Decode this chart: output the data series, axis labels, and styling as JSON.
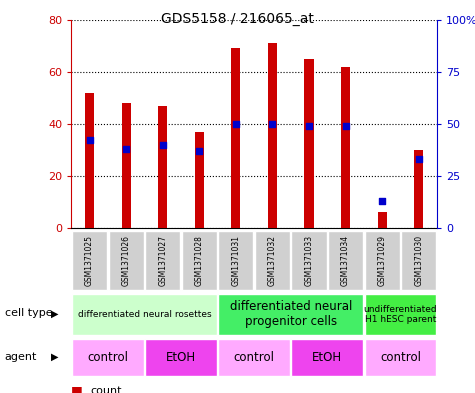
{
  "title": "GDS5158 / 216065_at",
  "samples": [
    "GSM1371025",
    "GSM1371026",
    "GSM1371027",
    "GSM1371028",
    "GSM1371031",
    "GSM1371032",
    "GSM1371033",
    "GSM1371034",
    "GSM1371029",
    "GSM1371030"
  ],
  "counts": [
    52,
    48,
    47,
    37,
    69,
    71,
    65,
    62,
    6,
    30
  ],
  "percentiles": [
    42,
    38,
    40,
    37,
    50,
    50,
    49,
    49,
    13,
    33
  ],
  "ylim_left": [
    0,
    80
  ],
  "ylim_right": [
    0,
    100
  ],
  "yticks_left": [
    0,
    20,
    40,
    60,
    80
  ],
  "yticks_right": [
    0,
    25,
    50,
    75,
    100
  ],
  "bar_color": "#cc0000",
  "dot_color": "#0000cc",
  "sample_bg_color": "#d0d0d0",
  "chart_bg_color": "#ffffff",
  "cell_type_groups": [
    {
      "label": "differentiated neural rosettes",
      "start": 0,
      "end": 4,
      "color": "#ccffcc",
      "fontsize": 6.5
    },
    {
      "label": "differentiated neural\nprogenitor cells",
      "start": 4,
      "end": 8,
      "color": "#44ee66",
      "fontsize": 8.5
    },
    {
      "label": "undifferentiated\nH1 hESC parent",
      "start": 8,
      "end": 10,
      "color": "#44ee44",
      "fontsize": 6.5
    }
  ],
  "agent_groups": [
    {
      "label": "control",
      "start": 0,
      "end": 2,
      "color": "#ffaaff"
    },
    {
      "label": "EtOH",
      "start": 2,
      "end": 4,
      "color": "#ee44ee"
    },
    {
      "label": "control",
      "start": 4,
      "end": 6,
      "color": "#ffaaff"
    },
    {
      "label": "EtOH",
      "start": 6,
      "end": 8,
      "color": "#ee44ee"
    },
    {
      "label": "control",
      "start": 8,
      "end": 10,
      "color": "#ffaaff"
    }
  ],
  "left_tick_color": "#cc0000",
  "right_tick_color": "#0000cc"
}
